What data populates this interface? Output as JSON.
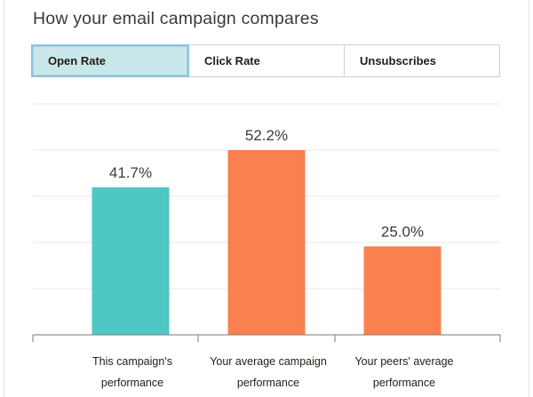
{
  "header": {
    "title": "How your email campaign compares"
  },
  "tabs": [
    {
      "label": "Open Rate",
      "active": true
    },
    {
      "label": "Click Rate",
      "active": false
    },
    {
      "label": "Unsubscribes",
      "active": false
    }
  ],
  "colors": {
    "teal": "#4fc7c3",
    "coral": "#fa8050",
    "active_tab_bg": "#c9e7ea",
    "active_tab_border": "#8ec2dd"
  },
  "chart_data": {
    "type": "bar",
    "title": "",
    "xlabel": "",
    "ylabel": "",
    "ylim": [
      0,
      60
    ],
    "grid": true,
    "categories": [
      [
        "This campaign's",
        "performance"
      ],
      [
        "Your average campaign",
        "performance"
      ],
      [
        "Your peers' average",
        "performance"
      ]
    ],
    "values": [
      41.7,
      52.2,
      25.0
    ],
    "value_labels": [
      "41.7%",
      "52.2%",
      "25.0%"
    ],
    "bar_colors": [
      "#4fc7c3",
      "#fa8050",
      "#fa8050"
    ]
  }
}
